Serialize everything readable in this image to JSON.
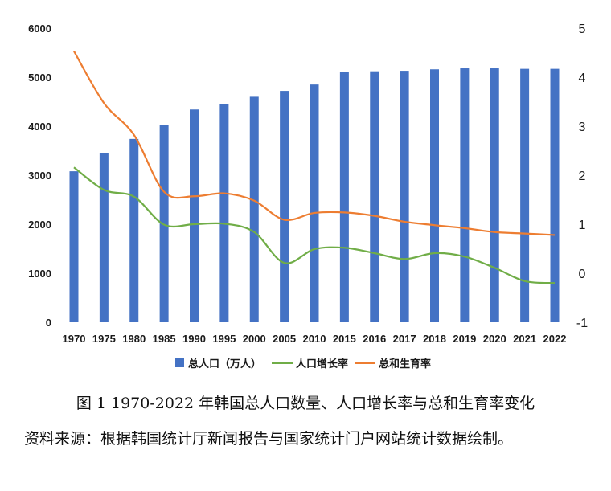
{
  "chart_data": {
    "type": "bar+line",
    "categories": [
      "1970",
      "1975",
      "1980",
      "1985",
      "1990",
      "1995",
      "2000",
      "2005",
      "2010",
      "2015",
      "2016",
      "2017",
      "2018",
      "2019",
      "2020",
      "2021",
      "2022"
    ],
    "series": [
      {
        "name": "总人口（万人）",
        "type": "bar",
        "axis": "left",
        "color": "#4472C4",
        "values": [
          3080,
          3450,
          3740,
          4030,
          4340,
          4450,
          4600,
          4720,
          4850,
          5100,
          5120,
          5130,
          5160,
          5180,
          5180,
          5170,
          5170
        ]
      },
      {
        "name": "人口增长率",
        "type": "line",
        "axis": "right",
        "color": "#70AD47",
        "values": [
          2.16,
          1.7,
          1.56,
          0.99,
          1.0,
          1.01,
          0.84,
          0.21,
          0.49,
          0.52,
          0.41,
          0.29,
          0.41,
          0.34,
          0.11,
          -0.16,
          -0.2
        ]
      },
      {
        "name": "总和生育率",
        "type": "line",
        "axis": "right",
        "color": "#ED7D31",
        "values": [
          4.53,
          3.47,
          2.82,
          1.66,
          1.57,
          1.63,
          1.48,
          1.09,
          1.23,
          1.24,
          1.17,
          1.05,
          0.98,
          0.92,
          0.84,
          0.81,
          0.78
        ]
      }
    ],
    "left_axis": {
      "ylim": [
        0,
        6000
      ],
      "ticks": [
        "0",
        "1000",
        "2000",
        "3000",
        "4000",
        "5000",
        "6000"
      ]
    },
    "right_axis": {
      "ylim": [
        -1,
        5
      ],
      "ticks": [
        "-1",
        "0",
        "1",
        "2",
        "3",
        "4",
        "5"
      ]
    },
    "grid": false,
    "legend_position": "bottom"
  },
  "caption": "图 1 1970-2022 年韩国总人口数量、人口增长率与总和生育率变化",
  "source": "资料来源：根据韩国统计厅新闻报告与国家统计门户网站统计数据绘制。"
}
